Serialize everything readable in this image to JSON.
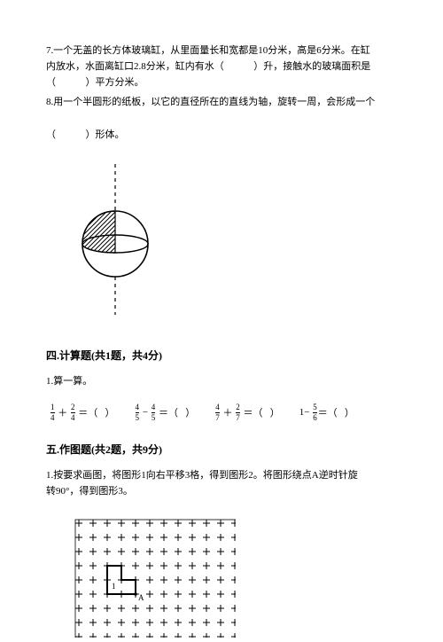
{
  "problems": {
    "p7": {
      "line1": "7.一个无盖的长方体玻璃缸，从里面量长和宽都是10分米，高是6分米。在缸",
      "line2a": "内放水，水面离缸口2.8分米，缸内有水（",
      "line2b": "）升，接触水的玻璃面积是",
      "line3a": "（",
      "line3b": "）平方分米。"
    },
    "p8": {
      "line1": "8.用一个半圆形的纸板，以它的直径所在的直线为轴，旋转一周，会形成一个",
      "line2a": "（",
      "line2b": "）形体。"
    }
  },
  "sections": {
    "s4": {
      "header": "四.计算题(共1题，共4分)",
      "q1_label": "1.算一算。",
      "calc": {
        "f1n": "1",
        "f1d": "4",
        "f2n": "2",
        "f2d": "4",
        "f3n": "4",
        "f3d": "5",
        "f4n": "4",
        "f4d": "5",
        "f5n": "4",
        "f5d": "7",
        "f6n": "2",
        "f6d": "7",
        "one": "1",
        "f7n": "5",
        "f7d": "6"
      }
    },
    "s5": {
      "header": "五.作图题(共2题，共9分)",
      "q1_line1": "1.按要求画图，将图形1向右平移3格，得到图形2。将图形绕点A逆时针旋",
      "q1_line2": "转90°，得到图形3。"
    }
  },
  "figures": {
    "sphere": {
      "width": 100,
      "height": 170,
      "axis_dash": "4,4",
      "stroke": "#000000",
      "rhombus_spacing": 4
    },
    "grid": {
      "cols": 11,
      "rows": 8,
      "cell": 16,
      "label1": "1",
      "labelA": "A",
      "stroke": "#000000",
      "font_size": 9
    }
  }
}
